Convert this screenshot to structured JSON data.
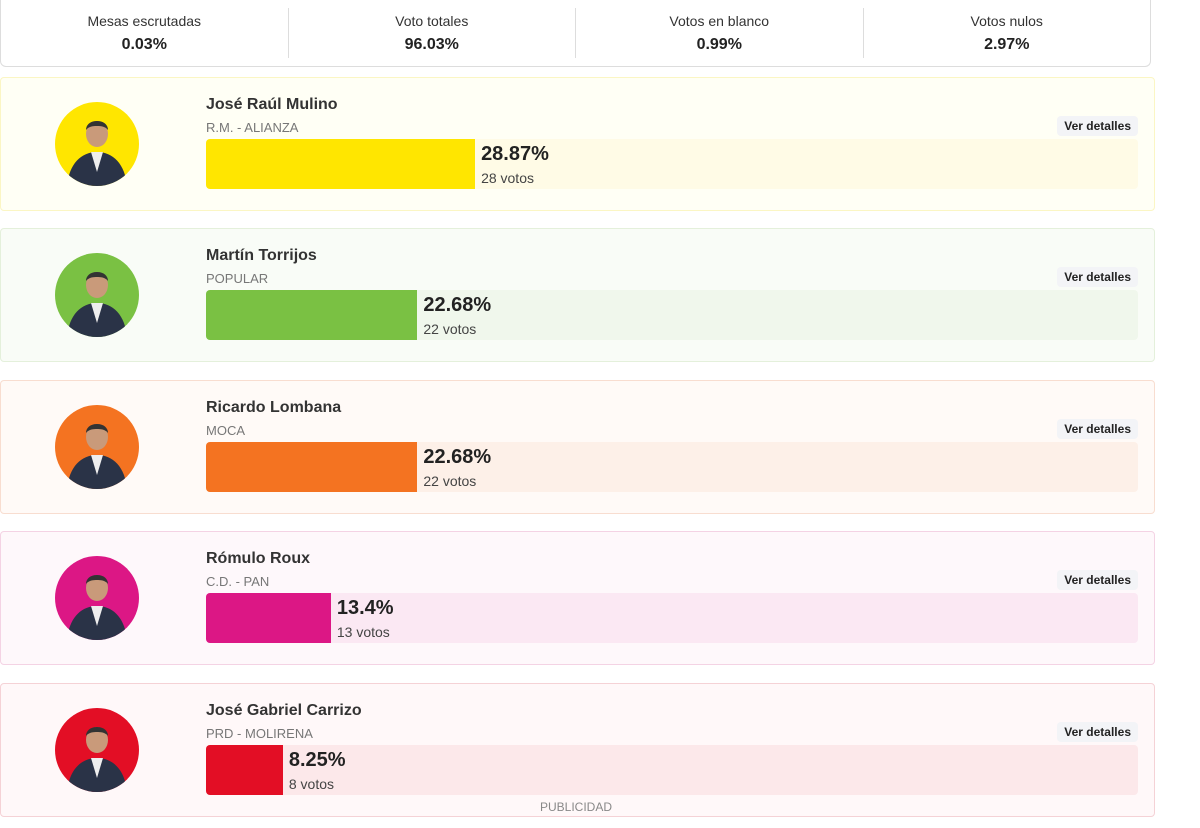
{
  "stats": [
    {
      "label": "Mesas escrutadas",
      "value": "0.03%"
    },
    {
      "label": "Voto totales",
      "value": "96.03%"
    },
    {
      "label": "Votos en blanco",
      "value": "0.99%"
    },
    {
      "label": "Votos nulos",
      "value": "2.97%"
    }
  ],
  "candidates": [
    {
      "name": "José Raúl Mulino",
      "party": "R.M. - ALIANZA",
      "percent_label": "28.87%",
      "percent": 28.87,
      "votes": "28 votos",
      "button": "Ver detalles",
      "color": "#ffe600",
      "track": "#fffbe6",
      "bg": "#fffff5",
      "border": "#fbf6c4"
    },
    {
      "name": "Martín Torrijos",
      "party": "POPULAR",
      "percent_label": "22.68%",
      "percent": 22.68,
      "votes": "22 votos",
      "button": "Ver detalles",
      "color": "#7ac143",
      "track": "#f0f7ec",
      "bg": "#f9fcf7",
      "border": "#e4f0db"
    },
    {
      "name": "Ricardo Lombana",
      "party": "MOCA",
      "percent_label": "22.68%",
      "percent": 22.68,
      "votes": "22 votos",
      "button": "Ver detalles",
      "color": "#f47321",
      "track": "#fdf0e8",
      "bg": "#fffaf7",
      "border": "#f8ddd0"
    },
    {
      "name": "Rómulo Roux",
      "party": "C.D. - PAN",
      "percent_label": "13.4%",
      "percent": 13.4,
      "votes": "13 votos",
      "button": "Ver detalles",
      "color": "#dc1785",
      "track": "#fbe8f3",
      "bg": "#fef8fb",
      "border": "#f4d3e4"
    },
    {
      "name": "José Gabriel Carrizo",
      "party": "PRD - MOLIRENA",
      "percent_label": "8.25%",
      "percent": 8.25,
      "votes": "8 votos",
      "button": "Ver detalles",
      "color": "#e30e25",
      "track": "#fce8ea",
      "bg": "#fff8f9",
      "border": "#f5d2d6"
    }
  ],
  "publicidad": "PUBLICIDAD"
}
